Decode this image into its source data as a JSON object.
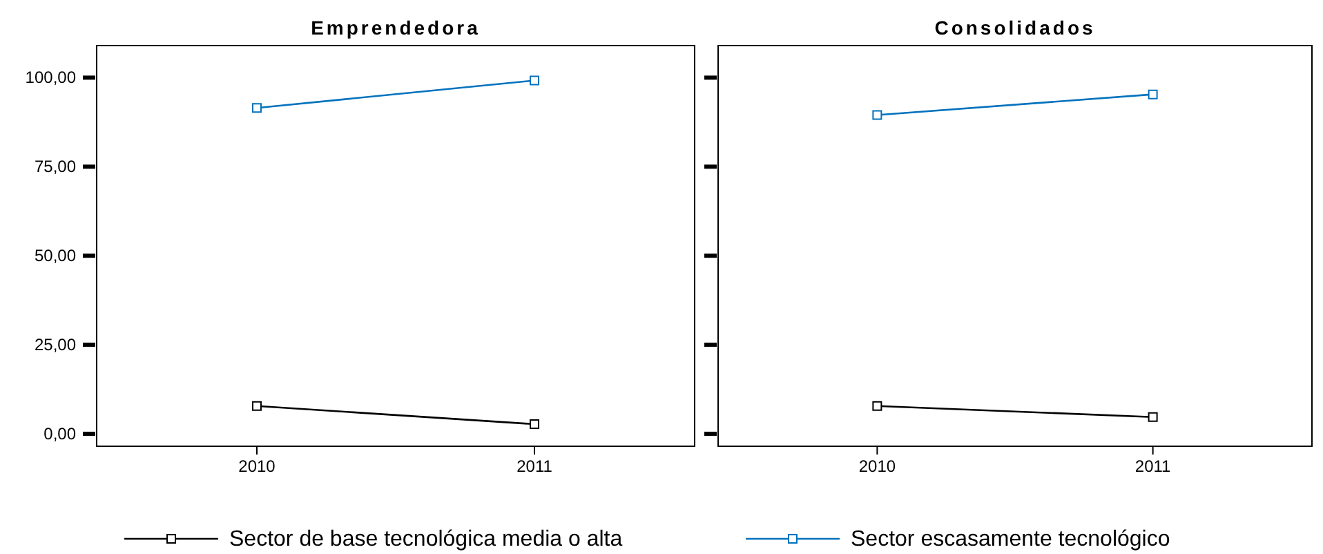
{
  "chart_data": [
    {
      "type": "line",
      "title": "Emprendedora",
      "categories": [
        "2010",
        "2011"
      ],
      "series": [
        {
          "name": "Sector de base tecnológica media o alta",
          "color": "#000000",
          "values": [
            7.8,
            2.7
          ]
        },
        {
          "name": "Sector escasamente tecnológico",
          "color": "#0072bd",
          "values": [
            91.5,
            99.2
          ]
        }
      ],
      "ylim": [
        -3.5,
        109
      ],
      "yticks": [
        {
          "value": 0,
          "label": "0,00"
        },
        {
          "value": 25,
          "label": "25,00"
        },
        {
          "value": 50,
          "label": "50,00"
        },
        {
          "value": 75,
          "label": "75,00"
        },
        {
          "value": 100,
          "label": "100,00"
        }
      ],
      "marker": "square",
      "legend": "bottom",
      "grid": false
    },
    {
      "type": "line",
      "title": "Consolidados",
      "categories": [
        "2010",
        "2011"
      ],
      "series": [
        {
          "color": "#000000",
          "values": [
            7.8,
            4.7
          ]
        },
        {
          "color": "#0072bd",
          "values": [
            89.5,
            95.3
          ]
        }
      ],
      "ylim": [
        -3.5,
        109
      ],
      "yticks": [
        {
          "value": 0,
          "label": null
        },
        {
          "value": 25,
          "label": null
        },
        {
          "value": 50,
          "label": null
        },
        {
          "value": 75,
          "label": null
        },
        {
          "value": 100,
          "label": null
        }
      ],
      "tick_labels": "x",
      "marker": "square",
      "grid": false
    }
  ]
}
